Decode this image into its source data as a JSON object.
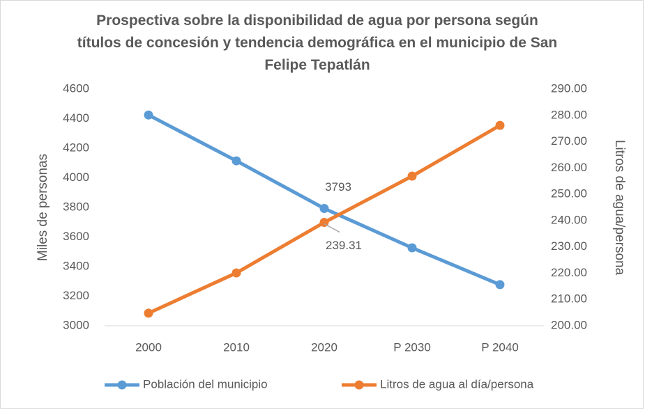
{
  "chart_data": {
    "type": "line",
    "title": "Prospectiva sobre la disponibilidad de agua por persona según títulos de concesión y tendencia demográfica en el municipio de San Felipe Tepatlán",
    "y_label": "Miles de personas",
    "y2_label": "Litros de agua/persona",
    "categories": [
      "2000",
      "2010",
      "2020",
      "P 2030",
      "P 2040"
    ],
    "series": [
      {
        "name": "Población del municipio",
        "color": "#5b9bd5",
        "values": [
          4425,
          4115,
          3793,
          3527,
          3278
        ]
      },
      {
        "name": "Litros de agua al día/persona",
        "color": "#ed7d31",
        "axis": "y2",
        "values": [
          204.8,
          220.1,
          239.31,
          256.9,
          276.2
        ]
      }
    ],
    "ylim": [
      3000,
      4600
    ],
    "yticks": [
      3000,
      3200,
      3400,
      3600,
      3800,
      4000,
      4200,
      4400,
      4600
    ],
    "y2lim": [
      200,
      290
    ],
    "y2ticks": [
      {
        "value": 200,
        "label": "200.00"
      },
      {
        "value": 210,
        "label": "210.00"
      },
      {
        "value": 220,
        "label": "220.00"
      },
      {
        "value": 230,
        "label": "230.00"
      },
      {
        "value": 240,
        "label": "240.00"
      },
      {
        "value": 250,
        "label": "250.00"
      },
      {
        "value": 260,
        "label": "260.00"
      },
      {
        "value": 270,
        "label": "270.00"
      },
      {
        "value": 280,
        "label": "280.00"
      },
      {
        "value": 290,
        "label": "290.00"
      }
    ],
    "legend": "bottom"
  }
}
